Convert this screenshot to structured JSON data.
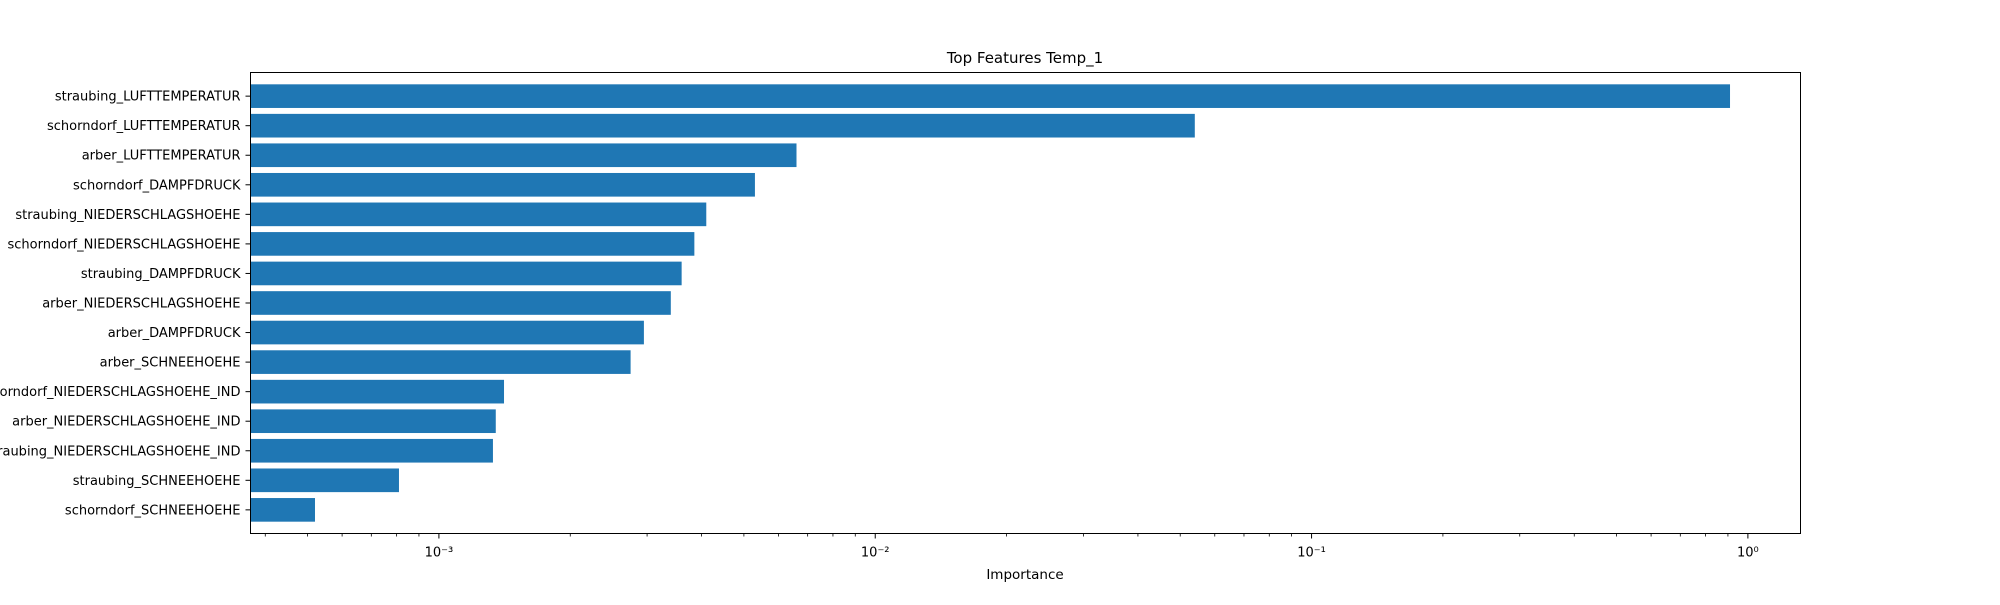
{
  "chart_data": {
    "type": "bar",
    "orientation": "horizontal",
    "title": "Top Features Temp_1",
    "xlabel": "Importance",
    "ylabel": "",
    "xscale": "log",
    "xlim": [
      0.00037,
      1.32
    ],
    "grid": false,
    "legend": "none",
    "bar_color": "#1f77b4",
    "categories": [
      "straubing_LUFTTEMPERATUR",
      "schorndorf_LUFTTEMPERATUR",
      "arber_LUFTTEMPERATUR",
      "schorndorf_DAMPFDRUCK",
      "straubing_NIEDERSCHLAGSHOEHE",
      "schorndorf_NIEDERSCHLAGSHOEHE",
      "straubing_DAMPFDRUCK",
      "arber_NIEDERSCHLAGSHOEHE",
      "arber_DAMPFDRUCK",
      "arber_SCHNEEHOEHE",
      "schorndorf_NIEDERSCHLAGSHOEHE_IND",
      "arber_NIEDERSCHLAGSHOEHE_IND",
      "straubing_NIEDERSCHLAGSHOEHE_IND",
      "straubing_SCHNEEHOEHE",
      "schorndorf_SCHNEEHOEHE"
    ],
    "values": [
      0.91,
      0.054,
      0.0066,
      0.0053,
      0.0041,
      0.00385,
      0.0036,
      0.0034,
      0.00295,
      0.00275,
      0.00141,
      0.00135,
      0.00133,
      0.00081,
      0.00052
    ],
    "xticks": [
      {
        "value": 0.001,
        "label": "10⁻³"
      },
      {
        "value": 0.01,
        "label": "10⁻²"
      },
      {
        "value": 0.1,
        "label": "10⁻¹"
      },
      {
        "value": 1,
        "label": "10⁰"
      }
    ]
  }
}
